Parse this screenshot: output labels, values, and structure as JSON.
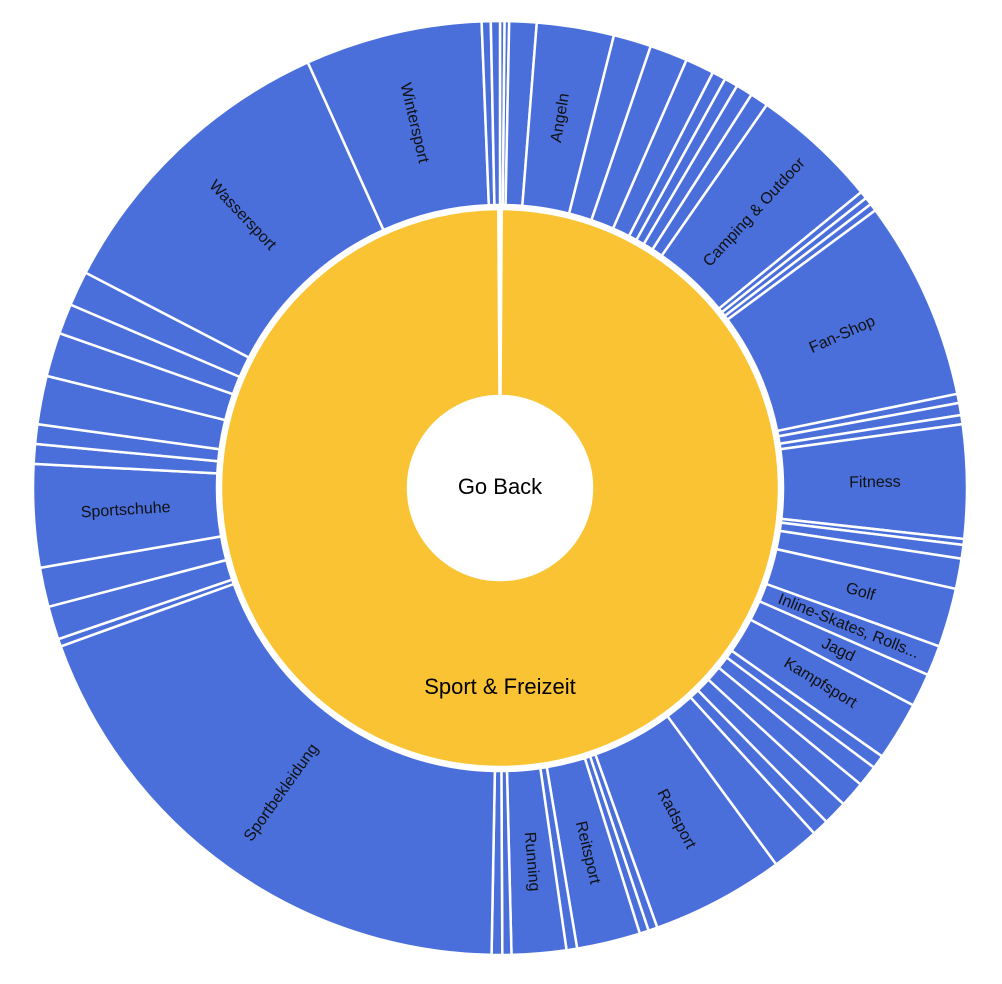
{
  "center": {
    "label": "Go Back"
  },
  "colors": {
    "inner": "#F9C333",
    "outer": "#4A6FDB",
    "center": "#FFFFFF"
  },
  "chart_data": {
    "type": "sunburst",
    "title": "",
    "inner": {
      "label": "Sport & Freizeit"
    },
    "segments": [
      {
        "label": "",
        "value": 0.3
      },
      {
        "label": "",
        "value": 0.3
      },
      {
        "label": "",
        "value": 1.8
      },
      {
        "label": "Angeln",
        "value": 5.1
      },
      {
        "label": "",
        "value": 2.5
      },
      {
        "label": "",
        "value": 2.5
      },
      {
        "label": "",
        "value": 1.9
      },
      {
        "label": "",
        "value": 0.9
      },
      {
        "label": "",
        "value": 0.9
      },
      {
        "label": "",
        "value": 1.1
      },
      {
        "label": "",
        "value": 1.2
      },
      {
        "label": "Camping & Outdoor",
        "value": 8.4
      },
      {
        "label": "",
        "value": 0.5
      },
      {
        "label": "",
        "value": 0.5
      },
      {
        "label": "",
        "value": 0.5
      },
      {
        "label": "Fan-Shop",
        "value": 13.2
      },
      {
        "label": "",
        "value": 0.6
      },
      {
        "label": "",
        "value": 0.8
      },
      {
        "label": "",
        "value": 0.6
      },
      {
        "label": "Fitness",
        "value": 7.5
      },
      {
        "label": "",
        "value": 0.4
      },
      {
        "label": "",
        "value": 0.9
      },
      {
        "label": "",
        "value": 2.0
      },
      {
        "label": "Golf",
        "value": 3.9
      },
      {
        "label": "Inline-Skates, Rolls...",
        "value": 2.0
      },
      {
        "label": "Jagd",
        "value": 2.2
      },
      {
        "label": "Kampfsport",
        "value": 3.9
      },
      {
        "label": "",
        "value": 0.9
      },
      {
        "label": "",
        "value": 1.4
      },
      {
        "label": "",
        "value": 1.7
      },
      {
        "label": "",
        "value": 1.6
      },
      {
        "label": "",
        "value": 1.1
      },
      {
        "label": "",
        "value": 3.2
      },
      {
        "label": "Radsport",
        "value": 8.8
      },
      {
        "label": "",
        "value": 0.6
      },
      {
        "label": "",
        "value": 0.6
      },
      {
        "label": "Reitsport",
        "value": 4.2
      },
      {
        "label": "",
        "value": 0.7
      },
      {
        "label": "Running",
        "value": 3.6
      },
      {
        "label": "",
        "value": 0.6
      },
      {
        "label": "",
        "value": 0.7
      },
      {
        "label": "Sportbekleidung",
        "value": 36.7
      },
      {
        "label": "",
        "value": 0.5
      },
      {
        "label": "",
        "value": 2.2
      },
      {
        "label": "",
        "value": 2.6
      },
      {
        "label": "Sportschuhe",
        "value": 6.8
      },
      {
        "label": "",
        "value": 1.3
      },
      {
        "label": "",
        "value": 1.3
      },
      {
        "label": "",
        "value": 3.2
      },
      {
        "label": "",
        "value": 2.9
      },
      {
        "label": "",
        "value": 2.0
      },
      {
        "label": "",
        "value": 2.3
      },
      {
        "label": "Wassersport",
        "value": 20.3
      },
      {
        "label": "Wintersport",
        "value": 11.7
      },
      {
        "label": "",
        "value": 0.6
      },
      {
        "label": "",
        "value": 0.6
      }
    ]
  }
}
